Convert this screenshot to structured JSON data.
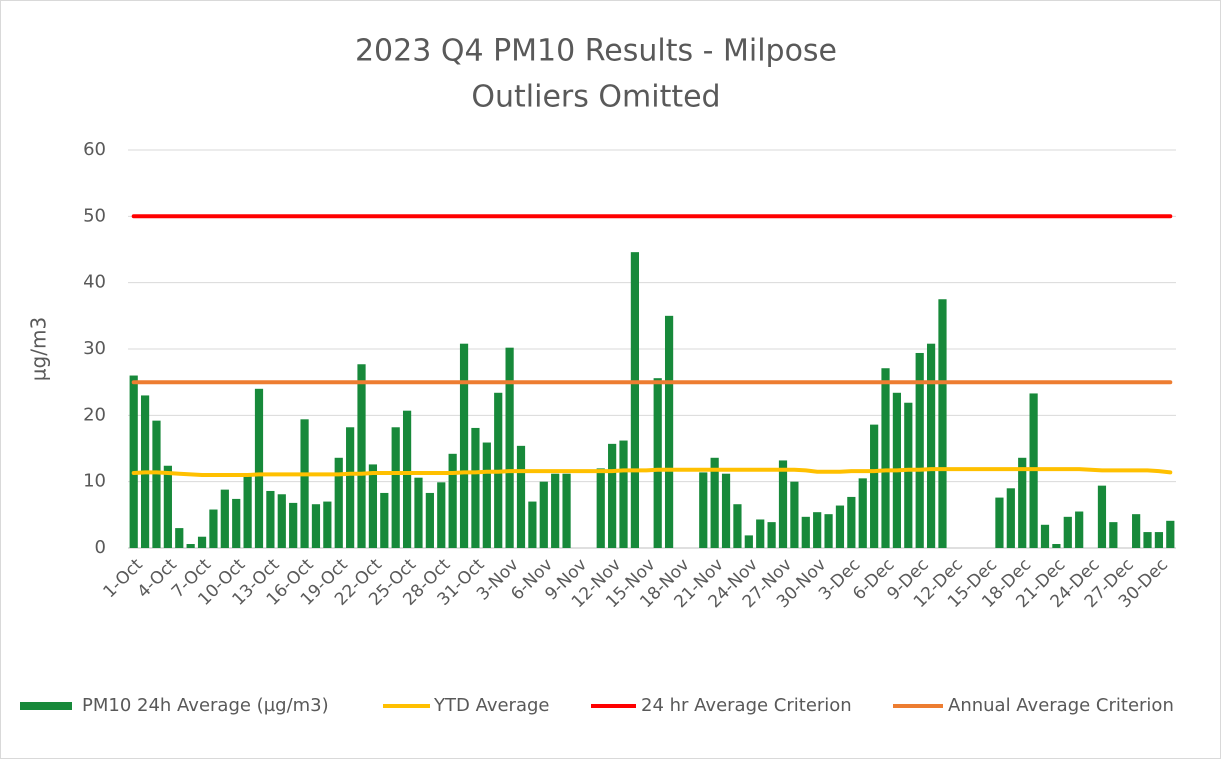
{
  "chart_data": {
    "type": "bar",
    "title": "2023 Q4 PM10 Results - Milpose",
    "subtitle": "Outliers Omitted",
    "y_label": "µg/m3",
    "categories": [
      "1-Oct",
      null,
      null,
      "4-Oct",
      null,
      null,
      "7-Oct",
      null,
      null,
      "10-Oct",
      null,
      null,
      "13-Oct",
      null,
      null,
      "16-Oct",
      null,
      null,
      "19-Oct",
      null,
      null,
      "22-Oct",
      null,
      null,
      "25-Oct",
      null,
      null,
      "28-Oct",
      null,
      null,
      "31-Oct",
      null,
      null,
      "3-Nov",
      null,
      null,
      "6-Nov",
      null,
      null,
      "9-Nov",
      null,
      null,
      "12-Nov",
      null,
      null,
      "15-Nov",
      null,
      null,
      "18-Nov",
      null,
      null,
      "21-Nov",
      null,
      null,
      "24-Nov",
      null,
      null,
      "27-Nov",
      null,
      null,
      "30-Nov",
      null,
      null,
      "3-Dec",
      null,
      null,
      "6-Dec",
      null,
      null,
      "9-Dec",
      null,
      null,
      "12-Dec",
      null,
      null,
      "15-Dec",
      null,
      null,
      "18-Dec",
      null,
      null,
      "21-Dec",
      null,
      null,
      "24-Dec",
      null,
      null,
      "27-Dec",
      null,
      null,
      "30-Dec",
      null
    ],
    "series": [
      {
        "name": "PM10 24h Average (µg/m3)",
        "type": "bar",
        "color": "#17893a",
        "values": [
          26,
          23,
          19.2,
          12.4,
          3,
          0.6,
          1.7,
          5.8,
          8.8,
          7.4,
          11,
          24,
          8.6,
          8.1,
          6.8,
          19.4,
          6.6,
          7,
          13.6,
          18.2,
          27.7,
          12.6,
          8.3,
          18.2,
          20.7,
          10.6,
          8.3,
          9.9,
          14.2,
          30.8,
          18.1,
          15.9,
          23.4,
          30.2,
          15.4,
          7,
          10,
          11.2,
          11.2,
          null,
          null,
          12,
          15.7,
          16.2,
          44.6,
          null,
          25.6,
          35,
          null,
          null,
          11.4,
          13.6,
          11.2,
          6.6,
          1.9,
          4.3,
          3.9,
          13.2,
          10,
          4.7,
          5.4,
          5.1,
          6.4,
          7.7,
          10.5,
          18.6,
          27.1,
          23.4,
          21.9,
          29.4,
          30.8,
          37.5,
          null,
          null,
          null,
          null,
          7.6,
          9,
          13.6,
          23.3,
          3.5,
          0.6,
          4.7,
          5.5,
          null,
          9.4,
          3.9,
          null,
          5.1,
          2.4,
          2.4,
          4.1
        ]
      },
      {
        "name": "YTD Average",
        "type": "line",
        "color": "#ffc000",
        "values": [
          11.3,
          11.4,
          11.4,
          11.3,
          11.2,
          11.1,
          11.0,
          11.0,
          11.0,
          11.0,
          11.0,
          11.1,
          11.1,
          11.1,
          11.1,
          11.1,
          11.1,
          11.1,
          11.1,
          11.2,
          11.2,
          11.3,
          11.3,
          11.3,
          11.3,
          11.3,
          11.3,
          11.3,
          11.3,
          11.4,
          11.4,
          11.5,
          11.5,
          11.6,
          11.6,
          11.6,
          11.6,
          11.6,
          11.6,
          11.6,
          11.6,
          11.6,
          11.6,
          11.7,
          11.7,
          11.7,
          11.8,
          11.8,
          11.8,
          11.8,
          11.8,
          11.8,
          11.8,
          11.8,
          11.8,
          11.8,
          11.8,
          11.8,
          11.8,
          11.7,
          11.5,
          11.5,
          11.5,
          11.6,
          11.6,
          11.6,
          11.7,
          11.7,
          11.8,
          11.8,
          11.9,
          11.9,
          11.9,
          11.9,
          11.9,
          11.9,
          11.9,
          11.9,
          11.9,
          11.9,
          11.9,
          11.9,
          11.9,
          11.9,
          11.8,
          11.7,
          11.7,
          11.7,
          11.7,
          11.7,
          11.6,
          11.4
        ]
      },
      {
        "name": "24 hr Average Criterion",
        "type": "line",
        "color": "#ff0000",
        "values": [
          50,
          50,
          50,
          50,
          50,
          50,
          50,
          50,
          50,
          50,
          50,
          50,
          50,
          50,
          50,
          50,
          50,
          50,
          50,
          50,
          50,
          50,
          50,
          50,
          50,
          50,
          50,
          50,
          50,
          50,
          50,
          50,
          50,
          50,
          50,
          50,
          50,
          50,
          50,
          50,
          50,
          50,
          50,
          50,
          50,
          50,
          50,
          50,
          50,
          50,
          50,
          50,
          50,
          50,
          50,
          50,
          50,
          50,
          50,
          50,
          50,
          50,
          50,
          50,
          50,
          50,
          50,
          50,
          50,
          50,
          50,
          50,
          50,
          50,
          50,
          50,
          50,
          50,
          50,
          50,
          50,
          50,
          50,
          50,
          50,
          50,
          50,
          50,
          50,
          50,
          50,
          50
        ]
      },
      {
        "name": "Annual Average Criterion",
        "type": "line",
        "color": "#ed7d31",
        "values": [
          25,
          25,
          25,
          25,
          25,
          25,
          25,
          25,
          25,
          25,
          25,
          25,
          25,
          25,
          25,
          25,
          25,
          25,
          25,
          25,
          25,
          25,
          25,
          25,
          25,
          25,
          25,
          25,
          25,
          25,
          25,
          25,
          25,
          25,
          25,
          25,
          25,
          25,
          25,
          25,
          25,
          25,
          25,
          25,
          25,
          25,
          25,
          25,
          25,
          25,
          25,
          25,
          25,
          25,
          25,
          25,
          25,
          25,
          25,
          25,
          25,
          25,
          25,
          25,
          25,
          25,
          25,
          25,
          25,
          25,
          25,
          25,
          25,
          25,
          25,
          25,
          25,
          25,
          25,
          25,
          25,
          25,
          25,
          25,
          25,
          25,
          25,
          25,
          25,
          25,
          25,
          25
        ]
      }
    ],
    "ylim": [
      0,
      60
    ],
    "yticks": [
      0,
      10,
      20,
      30,
      40,
      50,
      60
    ],
    "grid": true,
    "legend": "bottom"
  }
}
